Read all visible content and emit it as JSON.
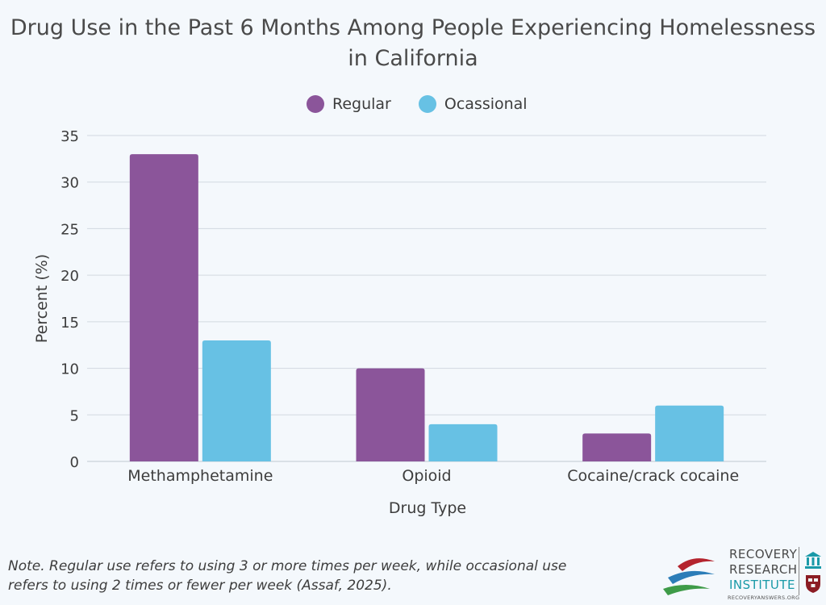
{
  "chart_data": {
    "type": "bar",
    "title_lines": [
      "Drug Use in the Past 6 Months Among People Experiencing Homelessness",
      "in California"
    ],
    "xlabel": "Drug Type",
    "ylabel": "Percent (%)",
    "categories": [
      "Methamphetamine",
      "Opioid",
      "Cocaine/crack cocaine"
    ],
    "series": [
      {
        "name": "Regular",
        "values": [
          33,
          10,
          3
        ],
        "color": "#8b559a"
      },
      {
        "name": "Ocassional",
        "values": [
          13,
          4,
          6
        ],
        "color": "#67c1e4"
      }
    ],
    "ylim": [
      0,
      35
    ],
    "yticks": [
      0,
      5,
      10,
      15,
      20,
      25,
      30,
      35
    ],
    "grid": true,
    "legend_position": "top-center"
  },
  "note": {
    "line1": "Note. Regular use refers to using 3 or more times per week, while occasional use",
    "line2": "refers to using 2 times or fewer per week (Assaf, 2025)."
  },
  "logo": {
    "line1": "RECOVERY",
    "line2": "RESEARCH",
    "line3": "INSTITUTE",
    "url": "RECOVERYANSWERS.ORG"
  },
  "colors": {
    "background": "#f4f8fc",
    "grid": "#d2d9e0"
  }
}
